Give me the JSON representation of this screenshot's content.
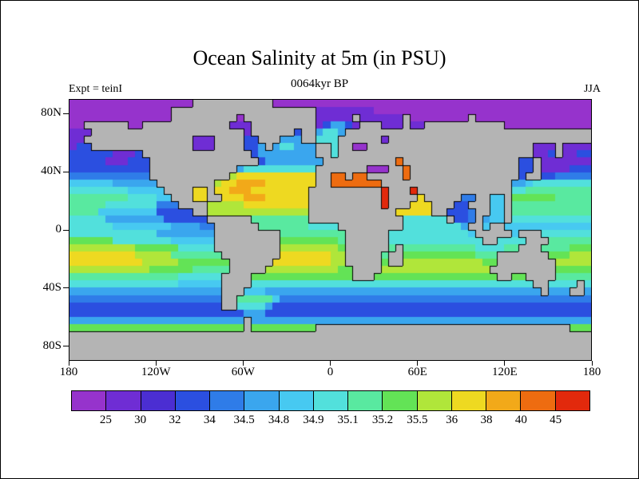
{
  "title": "Ocean Salinity at 5m (in PSU)",
  "subtitle": "0064kyr BP",
  "experiment_label": "Expt = teinI",
  "season_label": "JJA",
  "axes": {
    "lat_ticks": [
      {
        "label": "80N",
        "value": 80
      },
      {
        "label": "40N",
        "value": 40
      },
      {
        "label": "0",
        "value": 0
      },
      {
        "label": "40S",
        "value": -40
      },
      {
        "label": "80S",
        "value": -80
      }
    ],
    "lon_ticks": [
      {
        "label": "180",
        "value": -180
      },
      {
        "label": "120W",
        "value": -120
      },
      {
        "label": "60W",
        "value": -60
      },
      {
        "label": "0",
        "value": 0
      },
      {
        "label": "60E",
        "value": 60
      },
      {
        "label": "120E",
        "value": 120
      },
      {
        "label": "180",
        "value": 180
      }
    ]
  },
  "colorbar": {
    "labels": [
      "25",
      "30",
      "32",
      "34",
      "34.5",
      "34.8",
      "34.9",
      "35.1",
      "35.2",
      "35.5",
      "36",
      "38",
      "40",
      "45"
    ],
    "colors": [
      "#9633cc",
      "#6f2dd4",
      "#4b2ed2",
      "#2b4fe0",
      "#2f7ce8",
      "#3aa6ee",
      "#47c9f1",
      "#52e0dc",
      "#59e9a0",
      "#63e356",
      "#b0e63a",
      "#eed921",
      "#f2a919",
      "#ee6c10",
      "#e2290c"
    ]
  },
  "chart_data": {
    "type": "heatmap",
    "title": "Ocean Salinity at 5m (in PSU)",
    "units": "PSU",
    "time_label": "0064kyr BP",
    "season": "JJA",
    "experiment": "teinI",
    "lon_range": [
      -180,
      180
    ],
    "lat_range": [
      -90,
      90
    ],
    "levels": [
      25,
      30,
      32,
      34,
      34.5,
      34.8,
      34.9,
      35.1,
      35.2,
      35.5,
      36,
      38,
      40,
      45
    ],
    "bin_chars": "123456789abcdef",
    "land_char": "L",
    "land_color": "#b4b4b4",
    "palette": {
      "1": "#9633cc",
      "2": "#6f2dd4",
      "3": "#4b2ed2",
      "4": "#2b4fe0",
      "5": "#2f7ce8",
      "6": "#3aa6ee",
      "7": "#47c9f1",
      "8": "#52e0dc",
      "9": "#59e9a0",
      "a": "#63e356",
      "b": "#b0e63a",
      "c": "#eed921",
      "d": "#f2a919",
      "e": "#ee6c10",
      "f": "#e2290c"
    },
    "grid_rows": [
      [
        "111111111111",
        "11111LLLLLLL",
        "LLLL11111111",
        "111111111111",
        "111111111111",
        "111111111111"
      ],
      [
        "111111111111",
        "11LLLLLLLLLL",
        "LLLLLLLLLL22",
        "222222111111",
        "111111111111",
        "111111111111"
      ],
      [
        "111111111111",
        "11LLLLLLLLL1",
        "LLLLLLLLLL22",
        "222L222222L1",
        "1111111L1111",
        "111111111111"
      ],
      [
        "11LLLLLL11LL",
        "LLLLLLLLLL22",
        "2LLLLLLLLL24",
        "6642LLL222L2",
        "2LLLLLLLLLLL",
        "111111111111"
      ],
      [
        "222LLLLLLLLL",
        "LLLLLLLLLLLL",
        "2LLLLLL4LL68",
        "86LLLLLLLLLL",
        "LLLLLLLLLLLL",
        "LLLLLLLLLLLL"
      ],
      [
        "22LLLLLLLLLL",
        "LLLLL222LLLL",
        "44LLL666LL88",
        "8LLLLLL2LLLL",
        "LLLLLLLLLLLL",
        "LLLLLLLLLLLL"
      ],
      [
        "244LLLLLLLLL",
        "LLLLL222LLLL",
        "446L688666LL",
        "8LL11LLLLLLL",
        "LLLLLLLLLLLL",
        "LLLL222L2222"
      ],
      [
        "4444442224LL",
        "LLLLLLLLLLLL",
        "L466666666LL",
        "8LLLLLLLLLLL",
        "LLLLLLLLLLLL",
        "LLLL224L2244"
      ],
      [
        "44444222444L",
        "LLLLLLLLLLLL",
        "LL466666666L",
        "LLLLLLLLLeLL",
        "LLLLLLLLLLLL",
        "LL44L2222222"
      ],
      [
        "44444444444L",
        "LLLLLLLLLLL6",
        "8888888888LL",
        "LLLLL111LLeL",
        "LLLLLLLLLLLL",
        "LL44L2222444"
      ],
      [
        "55555555555L",
        "LLLLLLLLLLbc",
        "ccccccccccLL",
        "eeLeeLLLLLeL",
        "LLLLLLLLLLLL",
        "LL4LL4455555"
      ],
      [
        "777777666666",
        "LLLLLLLLbccd",
        "dddcccccccLL",
        "eeeeeeeLLLLL",
        "LLLLLLLLLLLL",
        "L66788888888"
      ],
      [
        "888888887777",
        "7LLLLccLccdd",
        "dccccccccLLL",
        "LLLLLLLfLLLf",
        "LLLLLLLLLLLL",
        "L88999999999"
      ],
      [
        "999999998888",
        "77LLLccLLccc",
        "dddccccccLLL",
        "LLLLLLLfLLLL",
        "cLLLLL55LL77",
        "Laaaaaa99999"
      ],
      [
        "999998888888",
        "555LLLLbbbbb",
        "cccccccccLLL",
        "LLLLLLLfLLLc",
        "ccLLL44LLL77",
        "L99999999999"
      ],
      [
        "999977777777",
        "44444LLbbbbb",
        "bbbbbbbbbLLL",
        "LLLLLLLLLccc",
        "ccLL4445LL77",
        "L99999999999"
      ],
      [
        "888886666666",
        "6444444LLLLL",
        "L99999999LLL",
        "LLLLLLLLLL88",
        "8888L445L677",
        "L88888888888"
      ],
      [
        "888888777777",
        "77666655LLLL",
        "LL9999999888",
        "8LLLLLLLLL88",
        "8888886LL7LL",
        "777777777777"
      ],
      [
        "888888888888",
        "66666666LLLL",
        "LLLLL9999999",
        "99LLLLLL8888",
        "88888887LLLL",
        "L7LLL8888888"
      ],
      [
        "aaaaaa888888",
        "88777777LLLL",
        "LLLLLaaaaaaa",
        "a9LLLLLL8888",
        "888888888LL8",
        "888LLL999999"
      ],
      [
        "bbbbbbbbbaaa",
        "aaa88888LLLL",
        "LLLLLbbbbbbb",
        "baLLLLLL9L99",
        "999999998888",
        "99LLL9999aaa"
      ],
      [
        "cccccccccbbb",
        "bb9999999LLL",
        "LLLLLccccccc",
        "bbLLLLL9LLaa",
        "aaaaaaaa999L",
        "LLLLLLaaabbb"
      ],
      [
        "ccccccccccbb",
        "bbbaaaaaaaLL",
        "LLLLcccccccc",
        "bbLLLLLaLLbb",
        "bbbbbbbbbaaL",
        "LLLLLLLbbbbb"
      ],
      [
        "bbbbbbbbbbba",
        "aaaaa99999LL",
        "LLLbbbbbbbbb",
        "baaLLLLbbbbb",
        "bbbbbbbbbbLL",
        "LLLLLLLaaaaa"
      ],
      [
        "999999999999",
        "999888888LLL",
        "Laaaaaaaaaaa",
        "aaaLLLaaaaaa",
        "aaaaaaaaaaaL",
        "LaaLLLL99999"
      ],
      [
        "888888888888",
        "888777777LLL",
        "L88888888888",
        "888888888888",
        "888888888888",
        "8888LL8888L8"
      ],
      [
        "666666666666",
        "666666666LLL",
        "777666666666",
        "666666666666",
        "666666666666",
        "66666L666LL6"
      ],
      [
        "555555555555",
        "555555555LL9",
        "999975555555",
        "555555555555",
        "555555555555",
        "555555555555"
      ],
      [
        "444444444444",
        "444444444LL8",
        "888644444444",
        "444444444444",
        "444444444444",
        "444444444444"
      ],
      [
        "444444444444",
        "444444444444",
        "666444444444",
        "444444444444",
        "444444444444",
        "444444444444"
      ],
      [
        "666666666666",
        "666666666666",
        "L66666666666",
        "666666666666",
        "666666666666",
        "666666666666"
      ],
      [
        "aaaaaaaaaaaa",
        "aaaaaaaaaaaa",
        "LaaaaaaaaaLL",
        "LLLLLLLLLLLL",
        "LLLLLLLLLLLL",
        "LLLLLLLLLaaa"
      ],
      [
        "LLLLLLLLLLLL",
        "LLLLLLLLLLLL",
        "LLLLLLLLLLLL",
        "LLLLLLLLLLLL",
        "LLLLLLLLLLLL",
        "LLLLLLLLLLLL"
      ],
      [
        "LLLLLLLLLLLL",
        "LLLLLLLLLLLL",
        "LLLLLLLLLLLL",
        "LLLLLLLLLLLL",
        "LLLLLLLLLLLL",
        "LLLLLLLLLLLL"
      ],
      [
        "LLLLLLLLLLLL",
        "LLLLLLLLLLLL",
        "LLLLLLLLLLLL",
        "LLLLLLLLLLLL",
        "LLLLLLLLLLLL",
        "LLLLLLLLLLLL"
      ],
      [
        "LLLLLLLLLLLL",
        "LLLLLLLLLLLL",
        "LLLLLLLLLLLL",
        "LLLLLLLLLLLL",
        "LLLLLLLLLLLL",
        "LLLLLLLLLLLL"
      ]
    ]
  }
}
